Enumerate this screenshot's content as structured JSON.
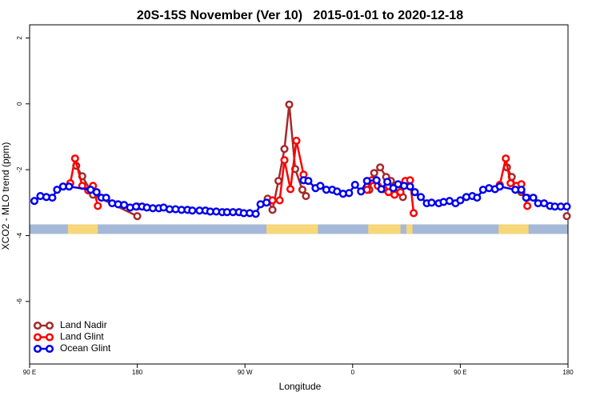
{
  "chart_data": {
    "type": "line",
    "title": "20S-15S November (Ver 10)   2015-01-01 to 2020-12-18",
    "x_label": "Longitude",
    "y_label": "XCO2 - MLO trend (ppm)",
    "xlim": [
      90,
      540
    ],
    "xticks": [
      {
        "value": 90,
        "label": "90 E"
      },
      {
        "value": 180,
        "label": "180"
      },
      {
        "value": 270,
        "label": "90 W"
      },
      {
        "value": 360,
        "label": "0"
      },
      {
        "value": 450,
        "label": "90 E"
      },
      {
        "value": 540,
        "label": "180"
      }
    ],
    "ylim": [
      -7.9,
      2.4
    ],
    "yticks": [
      2,
      0,
      -2,
      -4,
      -6
    ],
    "legend": "bottom-left",
    "surface_band": {
      "ylim": [
        -3.95,
        -3.66
      ],
      "ocean_color": "#a5b8d8",
      "land_color": "#f7d77a",
      "land": [
        [
          122,
          147
        ],
        [
          288,
          331
        ],
        [
          373,
          400
        ],
        [
          405,
          410
        ],
        [
          482,
          507
        ]
      ]
    },
    "series": [
      {
        "name": "Land Nadir",
        "color": "#a52a2a",
        "x": [
          129,
          134,
          143,
          180,
          250,
          289,
          293,
          298,
          303,
          307,
          312,
          318,
          321,
          340,
          374,
          378,
          383,
          388,
          392,
          397,
          402,
          450,
          489,
          493,
          497,
          501,
          506,
          520,
          539
        ],
        "values": [
          -1.88,
          -2.2,
          -2.76,
          -3.41,
          null,
          -2.88,
          -3.22,
          -2.34,
          -1.37,
          -0.02,
          -1.98,
          -2.61,
          -2.8,
          null,
          -2.61,
          -2.1,
          -1.93,
          -2.22,
          -2.34,
          -2.54,
          -2.83,
          null,
          -1.93,
          -2.22,
          -2.59,
          -2.68,
          -2.85,
          null,
          -3.41
        ]
      },
      {
        "name": "Land Glint",
        "color": "#ff0000",
        "x": [
          124,
          128,
          134,
          139,
          143,
          147,
          160,
          180,
          250,
          293,
          299,
          303,
          308,
          313,
          319,
          340,
          372,
          376,
          381,
          386,
          390,
          395,
          400,
          404,
          408,
          411,
          450,
          483,
          488,
          492,
          497,
          501,
          506
        ],
        "values": [
          -2.41,
          -1.66,
          -2.49,
          -2.63,
          -2.49,
          -3.1,
          null,
          -3.12,
          null,
          -2.93,
          -2.93,
          -1.71,
          -2.59,
          -1.12,
          -2.15,
          null,
          -2.61,
          -2.32,
          -2.49,
          -2.59,
          -2.68,
          -2.76,
          -2.68,
          -2.34,
          -2.32,
          -3.32,
          null,
          -2.46,
          -1.66,
          -2.41,
          -2.49,
          -2.44,
          -3.1
        ]
      },
      {
        "name": "Ocean Glint",
        "color": "#0000ee",
        "x": [
          94,
          99,
          104,
          109,
          113,
          118,
          123,
          141,
          146,
          150,
          154,
          159,
          164,
          169,
          174,
          179,
          184,
          188,
          193,
          198,
          202,
          207,
          212,
          217,
          222,
          226,
          232,
          237,
          241,
          246,
          251,
          255,
          260,
          265,
          269,
          274,
          279,
          283,
          288,
          303,
          319,
          323,
          329,
          333,
          338,
          343,
          347,
          352,
          357,
          362,
          367,
          372,
          380,
          384,
          389,
          394,
          398,
          403,
          408,
          412,
          417,
          422,
          426,
          432,
          436,
          441,
          446,
          450,
          455,
          460,
          464,
          469,
          474,
          479,
          483,
          496,
          501,
          505,
          511,
          515,
          520,
          525,
          529,
          534,
          539
        ],
        "values": [
          -2.95,
          -2.8,
          -2.83,
          -2.85,
          -2.61,
          -2.51,
          -2.51,
          -2.61,
          -2.68,
          -2.85,
          -2.85,
          -3.02,
          -3.05,
          -3.07,
          -3.15,
          -3.12,
          -3.12,
          -3.15,
          -3.17,
          -3.17,
          -3.15,
          -3.2,
          -3.2,
          -3.22,
          -3.22,
          -3.24,
          -3.24,
          -3.24,
          -3.27,
          -3.27,
          -3.29,
          -3.29,
          -3.29,
          -3.29,
          -3.32,
          -3.32,
          -3.34,
          -3.05,
          -3.0,
          null,
          -2.32,
          -2.34,
          -2.56,
          -2.49,
          -2.61,
          -2.61,
          -2.66,
          -2.73,
          -2.71,
          -2.46,
          -2.66,
          -2.34,
          -2.32,
          -2.59,
          -2.37,
          -2.56,
          -2.44,
          -2.49,
          -2.51,
          -2.68,
          -2.83,
          -3.02,
          -3.0,
          -3.02,
          -2.98,
          -2.95,
          -3.02,
          -2.93,
          -2.83,
          -2.8,
          -2.85,
          -2.61,
          -2.56,
          -2.59,
          -2.51,
          -2.61,
          -2.61,
          -2.85,
          -2.85,
          -3.02,
          -3.02,
          -3.1,
          -3.12,
          -3.12,
          -3.12
        ]
      }
    ]
  }
}
